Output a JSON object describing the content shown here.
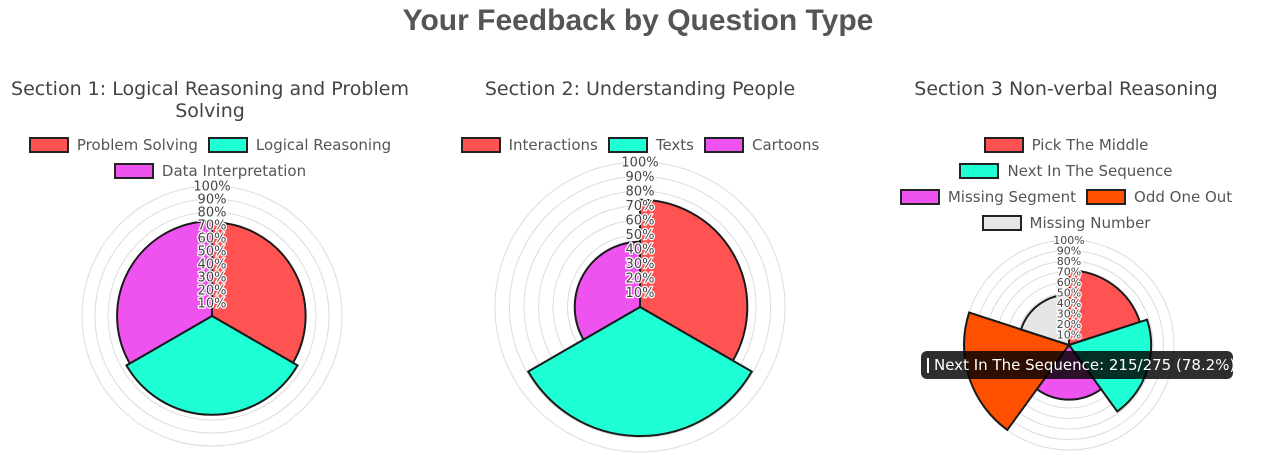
{
  "page_title": "Your Feedback by Question Type",
  "tick_labels": [
    "10%",
    "20%",
    "30%",
    "40%",
    "50%",
    "60%",
    "70%",
    "80%",
    "90%",
    "100%"
  ],
  "chart_data": [
    {
      "type": "polarArea",
      "title": "Section 1: Logical Reasoning and Problem Solving",
      "rlim": [
        0,
        100
      ],
      "legend_placement": "top",
      "categories": [
        "Problem Solving",
        "Logical Reasoning",
        "Data Interpretation"
      ],
      "colors": [
        "#ff5353",
        "#1effd6",
        "#ef53ef"
      ],
      "values": [
        72,
        76,
        73
      ]
    },
    {
      "type": "polarArea",
      "title": "Section 2: Understanding People",
      "rlim": [
        0,
        100
      ],
      "legend_placement": "top",
      "categories": [
        "Interactions",
        "Texts",
        "Cartoons"
      ],
      "colors": [
        "#ff5353",
        "#1effd6",
        "#ef53ef"
      ],
      "values": [
        74,
        89,
        45
      ]
    },
    {
      "type": "polarArea",
      "title": "Section 3 Non-verbal Reasoning",
      "rlim": [
        0,
        100
      ],
      "legend_placement": "top",
      "categories": [
        "Pick The Middle",
        "Next In The Sequence",
        "Missing Segment",
        "Odd One Out",
        "Missing Number"
      ],
      "colors": [
        "#ff5353",
        "#1effd6",
        "#ef53ef",
        "#ff5000",
        "#e6e6e6"
      ],
      "values": [
        71,
        78.2,
        52,
        100,
        48
      ]
    }
  ],
  "tooltip": {
    "text": "Next In The Sequence: 215/275 (78.2%)",
    "color": "#1effd6"
  }
}
